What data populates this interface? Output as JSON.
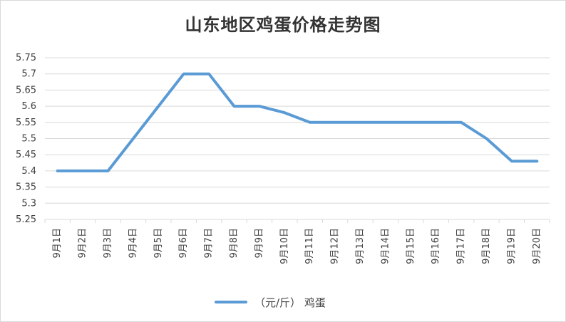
{
  "chart_data": {
    "type": "line",
    "title": "山东地区鸡蛋价格走势图",
    "categories": [
      "9月1日",
      "9月2日",
      "9月3日",
      "9月4日",
      "9月5日",
      "9月6日",
      "9月7日",
      "9月8日",
      "9月9日",
      "9月10日",
      "9月11日",
      "9月12日",
      "9月13日",
      "9月14日",
      "9月15日",
      "9月16日",
      "9月17日",
      "9月18日",
      "9月19日",
      "9月20日"
    ],
    "series": [
      {
        "name": "（元/斤） 鸡蛋",
        "color": "#5b9bd5",
        "values": [
          5.4,
          5.4,
          5.4,
          5.5,
          5.6,
          5.7,
          5.7,
          5.6,
          5.6,
          5.58,
          5.55,
          5.55,
          5.55,
          5.55,
          5.55,
          5.55,
          5.55,
          5.5,
          5.43,
          5.43
        ]
      }
    ],
    "yticks": [
      "5.25",
      "5.3",
      "5.35",
      "5.4",
      "5.45",
      "5.5",
      "5.55",
      "5.6",
      "5.65",
      "5.7",
      "5.75"
    ],
    "ylim": [
      5.25,
      5.75
    ],
    "grid": true,
    "legend_position": "bottom"
  }
}
